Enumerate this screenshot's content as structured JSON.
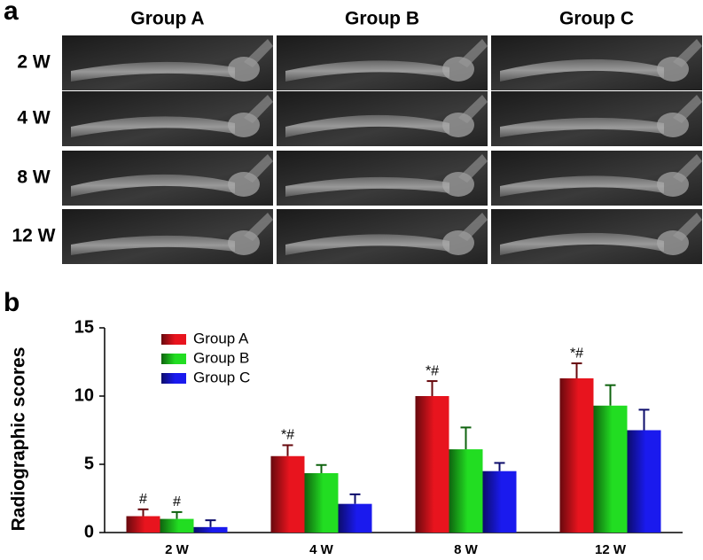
{
  "panel_a": {
    "label": "a",
    "columns": [
      "Group A",
      "Group B",
      "Group C"
    ],
    "rows": [
      "2 W",
      "4 W",
      "8 W",
      "12 W"
    ]
  },
  "chart_data": {
    "type": "bar",
    "panel_label": "b",
    "ylabel": "Radiographic scores",
    "categories": [
      "2 W",
      "4 W",
      "8 W",
      "12 W"
    ],
    "series": [
      {
        "name": "Group A",
        "color": "#e8141e",
        "values": [
          1.2,
          5.6,
          10.0,
          11.3
        ],
        "errors": [
          0.5,
          0.8,
          1.1,
          1.1
        ],
        "marks": [
          "#",
          "*#",
          "*#",
          "*#"
        ]
      },
      {
        "name": "Group B",
        "color": "#22dd22",
        "values": [
          1.0,
          4.35,
          6.1,
          9.3
        ],
        "errors": [
          0.5,
          0.6,
          1.6,
          1.5
        ],
        "marks": [
          "#",
          null,
          null,
          null
        ]
      },
      {
        "name": "Group C",
        "color": "#1a1aee",
        "values": [
          0.4,
          2.1,
          4.5,
          7.5
        ],
        "errors": [
          0.5,
          0.7,
          0.6,
          1.5
        ],
        "marks": [
          null,
          null,
          null,
          null
        ]
      }
    ],
    "ylim": [
      0,
      15
    ],
    "yticks": [
      0,
      5,
      10,
      15
    ],
    "legend": "upper-left"
  }
}
